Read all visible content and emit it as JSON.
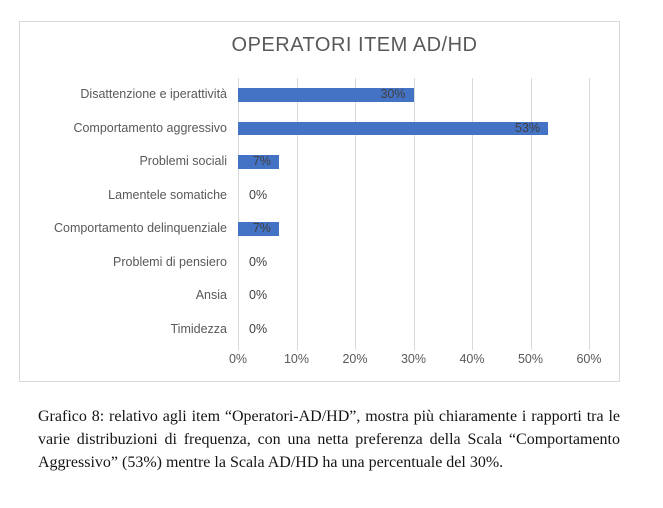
{
  "chart_data": {
    "type": "bar",
    "orientation": "horizontal",
    "title": "OPERATORI ITEM AD/HD",
    "categories": [
      "Disattenzione e iperattività",
      "Comportamento aggressivo",
      "Problemi sociali",
      "Lamentele somatiche",
      "Comportamento delinquenziale",
      "Problemi di pensiero",
      "Ansia",
      "Timidezza"
    ],
    "values": [
      30,
      53,
      7,
      0,
      7,
      0,
      0,
      0
    ],
    "value_labels": [
      "30%",
      "53%",
      "7%",
      "0%",
      "7%",
      "0%",
      "0%",
      "0%"
    ],
    "x_ticks": [
      "0%",
      "10%",
      "20%",
      "30%",
      "40%",
      "50%",
      "60%"
    ],
    "xlim": [
      0,
      60
    ],
    "grid": true,
    "legend": "none",
    "colors": {
      "bar": "#4472c4",
      "gridline": "#d9d9d9",
      "title": "#595959",
      "axis_label": "#595959",
      "data_label": "#404040",
      "frame_border": "#d8d8d8"
    }
  },
  "caption": {
    "text": "Grafico 8: relativo agli item “Operatori-AD/HD”, mostra più chiaramente i rapporti tra le varie distribuzioni di frequenza, con una netta preferenza della Scala “Comportamento Aggressivo” (53%) mentre la Scala AD/HD ha una percentuale del 30%."
  }
}
